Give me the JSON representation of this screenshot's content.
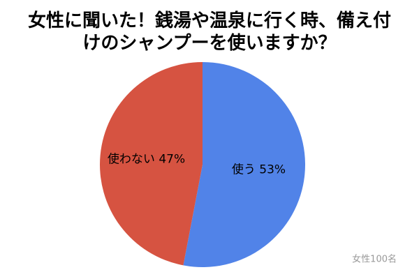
{
  "chart_data": {
    "type": "pie",
    "title": "女性に聞いた！銭湯や温泉に行く時、備え付けのシャンプーを使いますか？",
    "categories": [
      "使う",
      "使わない"
    ],
    "values": [
      53,
      47
    ],
    "value_labels": [
      "53%",
      "47%"
    ],
    "colors": [
      "#5183e8",
      "#d65341"
    ],
    "note": "女性100名"
  }
}
